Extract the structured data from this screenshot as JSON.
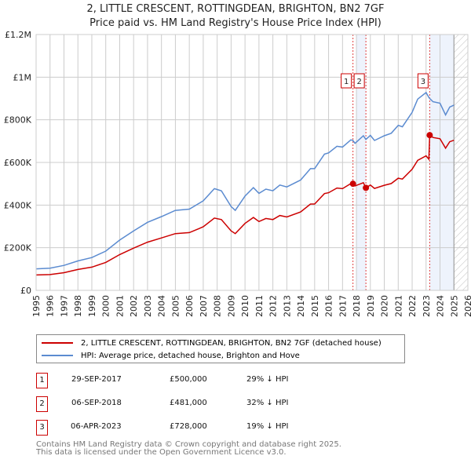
{
  "title": "2, LITTLE CRESCENT, ROTTINGDEAN, BRIGHTON, BN2 7GF",
  "subtitle": "Price paid vs. HM Land Registry's House Price Index (HPI)",
  "chart_data": {
    "type": "line",
    "title": "2, LITTLE CRESCENT, ROTTINGDEAN, BRIGHTON, BN2 7GF",
    "xlim": [
      1995,
      2026
    ],
    "ylim": [
      0,
      1200000
    ],
    "y_ticks": [
      {
        "v": 0,
        "label": "£0"
      },
      {
        "v": 200000,
        "label": "£200K"
      },
      {
        "v": 400000,
        "label": "£400K"
      },
      {
        "v": 600000,
        "label": "£600K"
      },
      {
        "v": 800000,
        "label": "£800K"
      },
      {
        "v": 1000000,
        "label": "£1M"
      },
      {
        "v": 1200000,
        "label": "£1.2M"
      }
    ],
    "x_ticks": [
      "1995",
      "1996",
      "1997",
      "1998",
      "1999",
      "2000",
      "2001",
      "2002",
      "2003",
      "2004",
      "2005",
      "2006",
      "2007",
      "2008",
      "2009",
      "2010",
      "2011",
      "2012",
      "2013",
      "2014",
      "2015",
      "2016",
      "2017",
      "2018",
      "2019",
      "2020",
      "2021",
      "2022",
      "2023",
      "2024",
      "2025",
      "2026"
    ],
    "grid": true,
    "x": [
      1995,
      1996,
      1997,
      1998,
      1999,
      2000,
      2001,
      2002,
      2003,
      2004,
      2005,
      2006,
      2007,
      2007.8,
      2008.3,
      2009,
      2009.3,
      2010,
      2010.6,
      2011,
      2011.5,
      2012,
      2012.5,
      2013,
      2014,
      2014.7,
      2015,
      2015.7,
      2016,
      2016.6,
      2017,
      2017.6,
      2017.75,
      2017.9,
      2018.5,
      2018.68,
      2019,
      2019.3,
      2020,
      2020.5,
      2021,
      2021.3,
      2022,
      2022.4,
      2023,
      2023.2,
      2023.26,
      2023.5,
      2024,
      2024.4,
      2024.7,
      2025
    ],
    "series": [
      {
        "name": "2, LITTLE CRESCENT, ROTTINGDEAN, BRIGHTON, BN2 7GF (detached house)",
        "color": "#cc0000",
        "values": [
          72000,
          74000,
          83000,
          98000,
          109000,
          131000,
          168000,
          198000,
          226000,
          246000,
          266000,
          271000,
          298000,
          339000,
          332000,
          279000,
          266000,
          314000,
          342000,
          323000,
          337000,
          332000,
          351000,
          344000,
          368000,
          405000,
          405000,
          454000,
          458000,
          480000,
          477000,
          501000,
          500000,
          490000,
          505000,
          481000,
          494000,
          478000,
          493000,
          501000,
          526000,
          522000,
          568000,
          610000,
          631000,
          615000,
          728000,
          717000,
          711000,
          667000,
          697000,
          704000
        ]
      },
      {
        "name": "HPI: Average price, detached house, Brighton and Hove",
        "color": "#5b8bd0",
        "values": [
          101000,
          104000,
          117000,
          138000,
          154000,
          184000,
          236000,
          279000,
          319000,
          346000,
          375000,
          381000,
          420000,
          477000,
          467000,
          393000,
          375000,
          442000,
          482000,
          455000,
          475000,
          467000,
          494000,
          485000,
          518000,
          571000,
          571000,
          639000,
          645000,
          676000,
          672000,
          706000,
          703000,
          690000,
          725000,
          708000,
          727000,
          703000,
          725000,
          737000,
          774000,
          767000,
          835000,
          897000,
          928000,
          905000,
          900000,
          885000,
          878000,
          823000,
          860000,
          869000
        ]
      }
    ],
    "sales": [
      {
        "id": "1",
        "x": 2017.75,
        "y": 500000
      },
      {
        "id": "2",
        "x": 2018.68,
        "y": 481000
      },
      {
        "id": "3",
        "x": 2023.26,
        "y": 728000
      }
    ],
    "shaded": [
      [
        2018.0,
        2018.68
      ],
      [
        2023.26,
        2025.0
      ]
    ],
    "hatched_from": 2025.0
  },
  "legend": [
    "2, LITTLE CRESCENT, ROTTINGDEAN, BRIGHTON, BN2 7GF (detached house)",
    "HPI: Average price, detached house, Brighton and Hove"
  ],
  "transactions": [
    {
      "id": "1",
      "date": "29-SEP-2017",
      "price": "£500,000",
      "diff": "29% ↓ HPI"
    },
    {
      "id": "2",
      "date": "06-SEP-2018",
      "price": "£481,000",
      "diff": "32% ↓ HPI"
    },
    {
      "id": "3",
      "date": "06-APR-2023",
      "price": "£728,000",
      "diff": "19% ↓ HPI"
    }
  ],
  "footer": [
    "Contains HM Land Registry data © Crown copyright and database right 2025.",
    "This data is licensed under the Open Government Licence v3.0."
  ]
}
